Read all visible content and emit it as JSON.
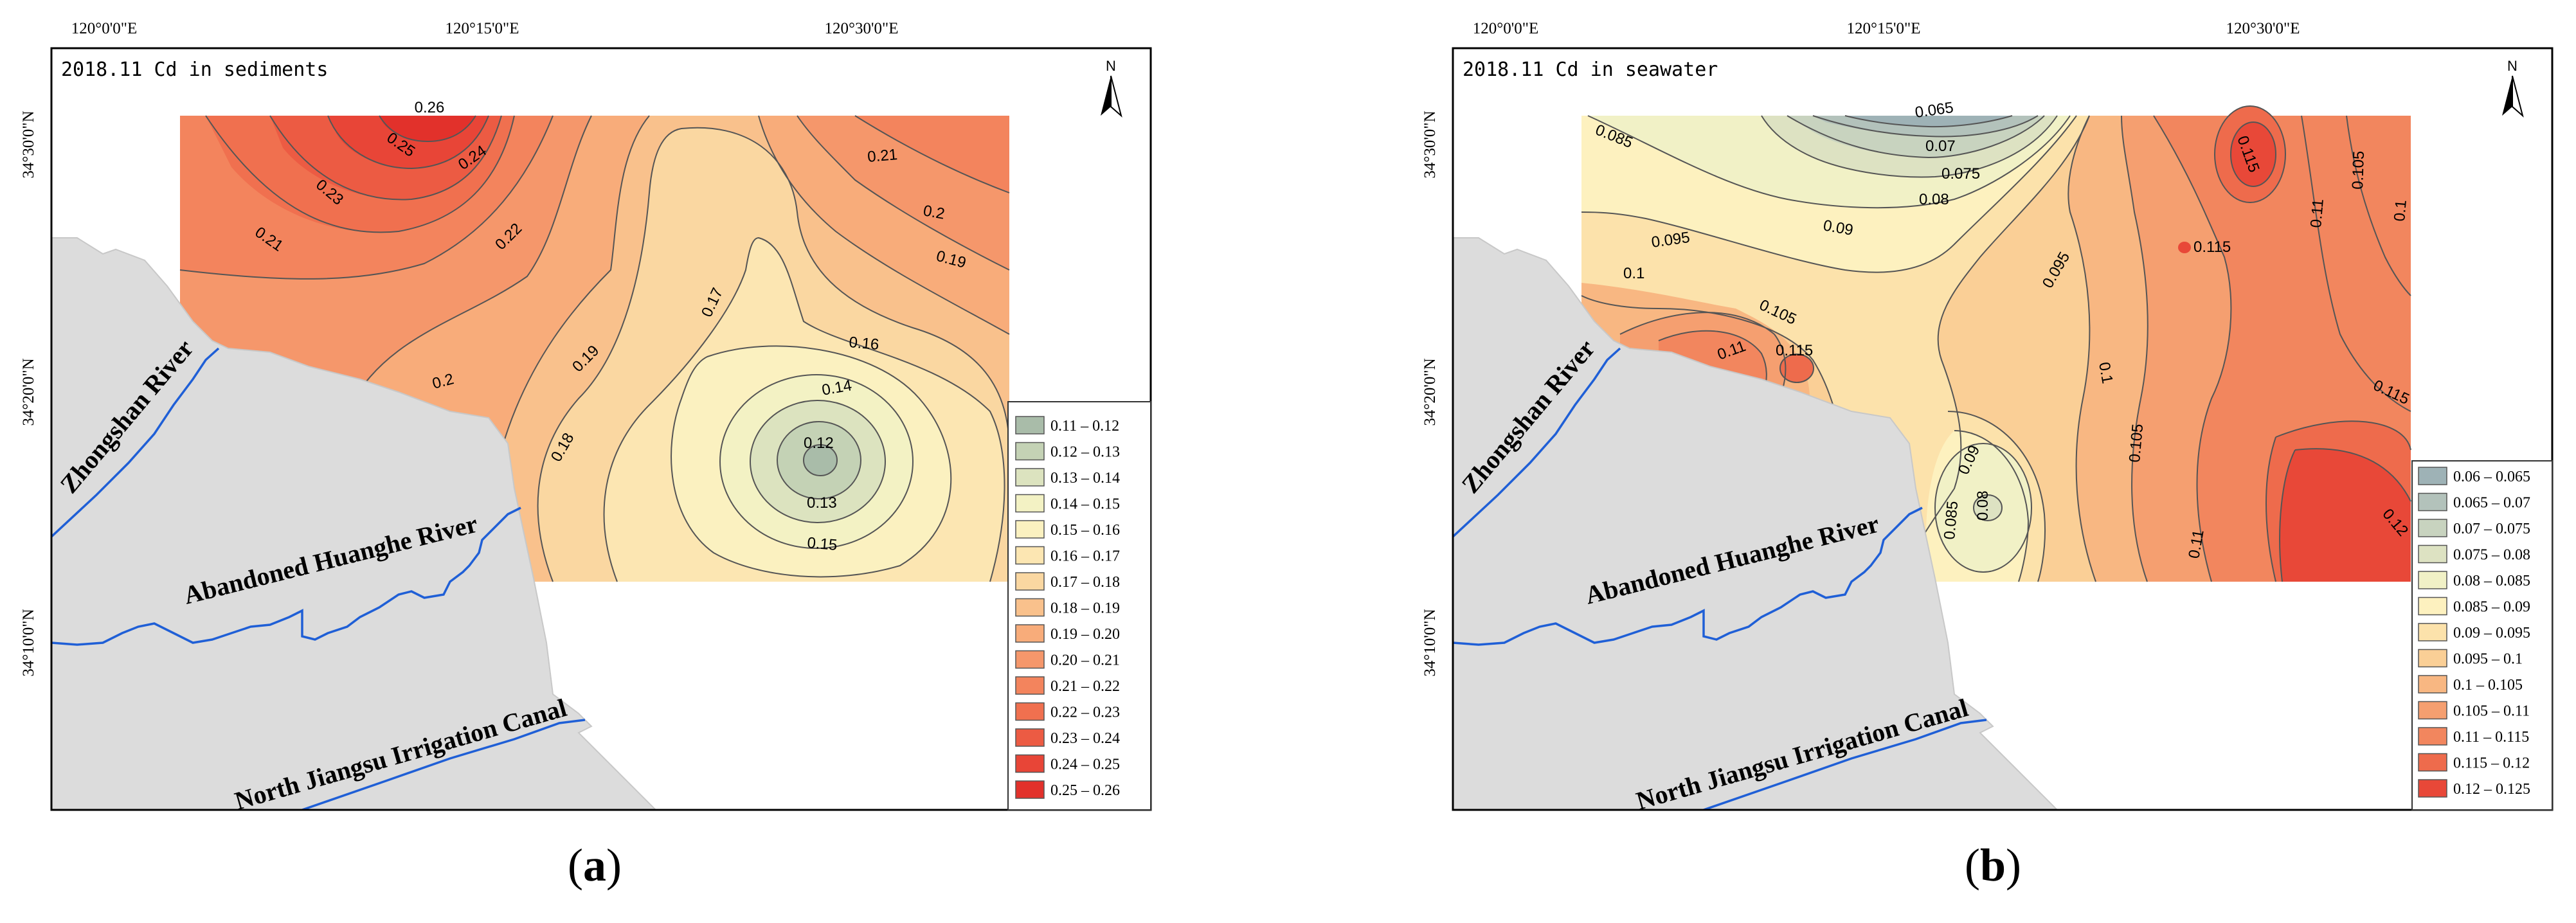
{
  "axes": {
    "lon_labels": [
      "120°0'0\"E",
      "120°15'0\"E",
      "120°30'0\"E"
    ],
    "lat_labels": [
      "34°30'0\"N",
      "34°20'0\"N",
      "34°10'0\"N"
    ]
  },
  "north_label": "N",
  "rivers": [
    "Zhongshan River",
    "Abandoned Huanghe River",
    "North Jiangsu Irrigation Canal"
  ],
  "colors": {
    "land": "#dcdcdc",
    "river": "#1f5fd6",
    "contour_line": "#555555"
  },
  "panels": [
    {
      "id": "a",
      "title": "2018.11 Cd in sediments",
      "caption": "a",
      "legend": [
        {
          "range": "0.11 – 0.12",
          "color": "#a9bca9"
        },
        {
          "range": "0.12 – 0.13",
          "color": "#c4d2b5"
        },
        {
          "range": "0.13 – 0.14",
          "color": "#dce3bf"
        },
        {
          "range": "0.14 – 0.15",
          "color": "#f3f2c4"
        },
        {
          "range": "0.15 – 0.16",
          "color": "#fbf1c0"
        },
        {
          "range": "0.16 – 0.17",
          "color": "#fce6b2"
        },
        {
          "range": "0.17 – 0.18",
          "color": "#fad7a1"
        },
        {
          "range": "0.18 – 0.19",
          "color": "#f9c18c"
        },
        {
          "range": "0.19 – 0.20",
          "color": "#f8ac7a"
        },
        {
          "range": "0.20 – 0.21",
          "color": "#f5976b"
        },
        {
          "range": "0.21 – 0.22",
          "color": "#f3845d"
        },
        {
          "range": "0.22 – 0.23",
          "color": "#f0704f"
        },
        {
          "range": "0.23 – 0.24",
          "color": "#ec5b43"
        },
        {
          "range": "0.24 – 0.25",
          "color": "#e84537"
        },
        {
          "range": "0.25 – 0.26",
          "color": "#e2312b"
        }
      ],
      "contour_labels": [
        "0.26",
        "0.25",
        "0.24",
        "0.23",
        "0.22",
        "0.21",
        "0.2",
        "0.19",
        "0.18",
        "0.17",
        "0.16",
        "0.14",
        "0.12",
        "0.13",
        "0.15",
        "0.21",
        "0.2",
        "0.19"
      ]
    },
    {
      "id": "b",
      "title": "2018.11 Cd in seawater",
      "caption": "b",
      "legend": [
        {
          "range": "0.06 – 0.065",
          "color": "#9eb2b6"
        },
        {
          "range": "0.065 – 0.07",
          "color": "#b3c2bb"
        },
        {
          "range": "0.07 – 0.075",
          "color": "#c8d3bf"
        },
        {
          "range": "0.075 – 0.08",
          "color": "#dde2c2"
        },
        {
          "range": "0.08 – 0.085",
          "color": "#f1f1c6"
        },
        {
          "range": "0.085 – 0.09",
          "color": "#fdf1bf"
        },
        {
          "range": "0.09 – 0.095",
          "color": "#fce2ab"
        },
        {
          "range": "0.095 – 0.1",
          "color": "#facf96"
        },
        {
          "range": "0.1 – 0.105",
          "color": "#f8b782"
        },
        {
          "range": "0.105 – 0.11",
          "color": "#f59f70"
        },
        {
          "range": "0.11 – 0.115",
          "color": "#f2865e"
        },
        {
          "range": "0.115 – 0.12",
          "color": "#ee6b4c"
        },
        {
          "range": "0.12 – 0.125",
          "color": "#e84838"
        }
      ],
      "contour_labels": [
        "0.065",
        "0.07",
        "0.075",
        "0.08",
        "0.085",
        "0.09",
        "0.095",
        "0.1",
        "0.105",
        "0.11",
        "0.115",
        "0.095",
        "0.1",
        "0.105",
        "0.11",
        "0.09",
        "0.085",
        "0.08",
        "0.115",
        "0.115",
        "0.11",
        "0.105",
        "0.1",
        "0.115",
        "0.12"
      ]
    }
  ]
}
